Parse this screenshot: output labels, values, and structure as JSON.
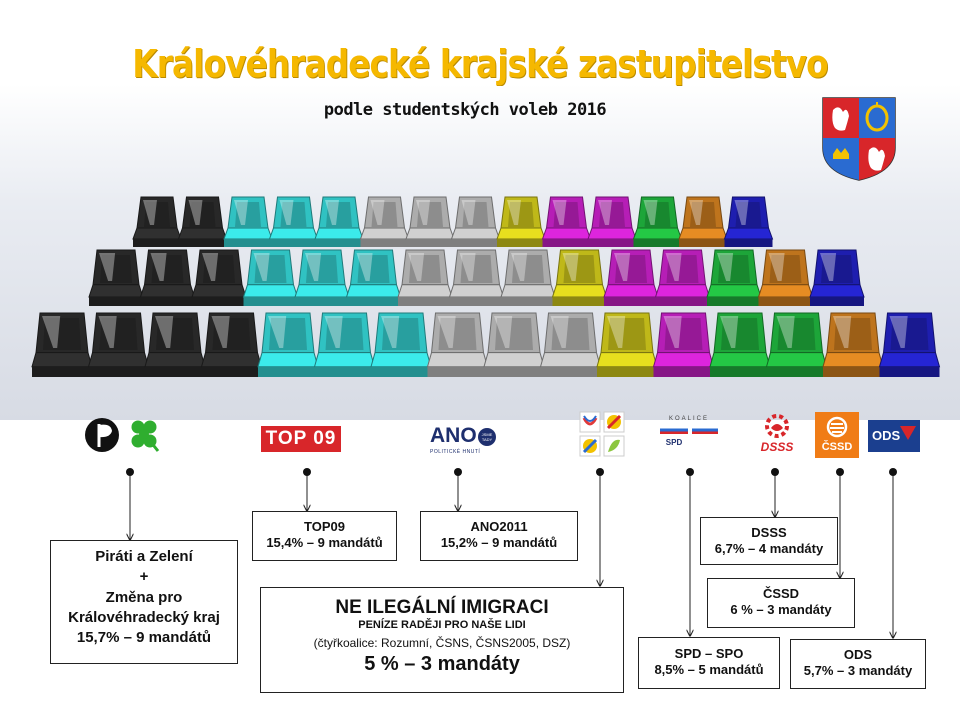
{
  "title": "Královéhradecké krajské zastupitelstvo",
  "subtitle": "podle studentských voleb 2016",
  "colors": {
    "title": "#f5b800",
    "black": "#2a2a2a",
    "cyan": "#33cccc",
    "grey": "#b5b5b5",
    "yellow": "#c9c21a",
    "magenta": "#c020c0",
    "green": "#1fae3c",
    "orange": "#c87a1e",
    "blue": "#2020b8"
  },
  "chart_data": {
    "type": "parliament-seats",
    "total": 45,
    "parties": [
      {
        "name": "Piráti a Zelení + Změna pro Královéhradecký kraj",
        "percent": 15.7,
        "seats": 9,
        "color": "#2a2a2a"
      },
      {
        "name": "TOP09",
        "percent": 15.4,
        "seats": 9,
        "color": "#33cccc"
      },
      {
        "name": "ANO2011",
        "percent": 15.2,
        "seats": 9,
        "color": "#b5b5b5"
      },
      {
        "name": "NE ILEGÁLNÍ IMIGRACI",
        "percent": 5,
        "seats": 3,
        "color": "#c9c21a"
      },
      {
        "name": "SPD – SPO",
        "percent": 8.5,
        "seats": 5,
        "color": "#c020c0"
      },
      {
        "name": "DSSS",
        "percent": 6.7,
        "seats": 4,
        "color": "#1fae3c"
      },
      {
        "name": "ČSSD",
        "percent": 6,
        "seats": 3,
        "color": "#c87a1e"
      },
      {
        "name": "ODS",
        "percent": 5.7,
        "seats": 3,
        "color": "#2020b8"
      }
    ]
  },
  "logos": {
    "top09": "TOP 09",
    "ano_main": "ANO",
    "ano_badge": "JSME TADY",
    "ano_sub": "POLITICKÉ HNUTÍ",
    "spd_top": "KOALICE",
    "spd_left": "SPD",
    "spd_right": "SPO",
    "dsss": "DSSS",
    "cssd": "ČSSD",
    "ods": "ODS"
  },
  "icons": {
    "pirate": "pirate-flag-icon",
    "clover": "clover-icon",
    "crest": "coat-of-arms-icon"
  },
  "boxes": {
    "pirati": {
      "l1": "Piráti a Zelení",
      "l2": "+",
      "l3": "Změna pro",
      "l4": "Královéhradecký kraj",
      "l5": "15,7% – 9 mandátů"
    },
    "top09": {
      "l1": "TOP09",
      "l2": "15,4% – 9 mandátů"
    },
    "ano": {
      "l1": "ANO2011",
      "l2": "15,2% – 9 mandátů"
    },
    "nii": {
      "l1": "NE ILEGÁLNÍ IMIGRACI",
      "l2": "PENÍZE RADĚJI PRO NAŠE LIDI",
      "l3": "(čtyřkoalice: Rozumní, ČSNS, ČSNS2005, DSZ)",
      "l4": "5 % – 3 mandáty"
    },
    "dsss": {
      "l1": "DSSS",
      "l2": "6,7% – 4 mandáty"
    },
    "cssd": {
      "l1": "ČSSD",
      "l2": "6 % – 3 mandáty"
    },
    "spd": {
      "l1": "SPD – SPO",
      "l2": "8,5% – 5 mandátů"
    },
    "ods": {
      "l1": "ODS",
      "l2": "5,7% – 3 mandáty"
    }
  }
}
